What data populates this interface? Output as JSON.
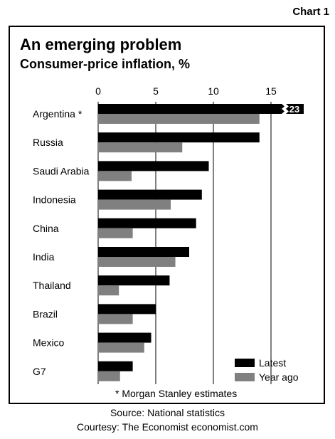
{
  "header": {
    "chart_number": "Chart 1"
  },
  "chart_data": {
    "type": "bar",
    "orientation": "horizontal",
    "title": "An emerging problem",
    "subtitle": "Consumer-price inflation, %",
    "categories": [
      "Argentina *",
      "Russia",
      "Saudi Arabia",
      "Indonesia",
      "China",
      "India",
      "Thailand",
      "Brazil",
      "Mexico",
      "G7"
    ],
    "series": [
      {
        "name": "Latest",
        "color": "#000000",
        "values": [
          23,
          14.0,
          9.6,
          9.0,
          8.5,
          7.9,
          6.2,
          5.0,
          4.6,
          3.0
        ]
      },
      {
        "name": "Year ago",
        "color": "#808080",
        "values": [
          14.0,
          7.3,
          2.9,
          6.3,
          3.0,
          6.7,
          1.8,
          3.0,
          4.0,
          1.9
        ]
      }
    ],
    "xlim": [
      0,
      17
    ],
    "xticks": [
      0,
      5,
      10,
      15
    ],
    "axis_break": {
      "category": "Argentina *",
      "series": "Latest",
      "label": "23"
    },
    "legend_position": "bottom-right",
    "grid": "vertical gridlines at ticks"
  },
  "footnote": "* Morgan Stanley estimates",
  "source_lines": [
    "Source: National statistics",
    "Courtesy: The Economist economist.com"
  ]
}
